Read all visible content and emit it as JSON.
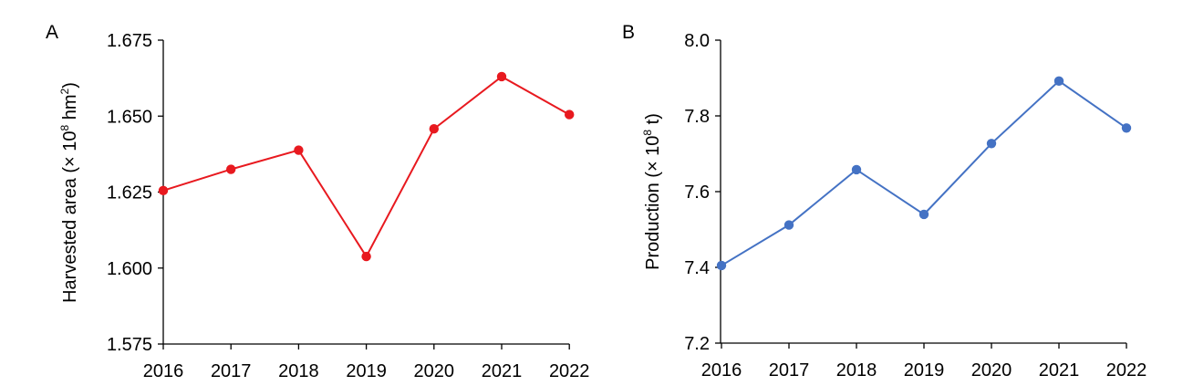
{
  "panels": [
    {
      "letter": "A"
    },
    {
      "letter": "B"
    }
  ],
  "chart_data": [
    {
      "type": "line",
      "panel": "A",
      "ylabel_main": "Harvested area (× 10",
      "ylabel_sup": "8",
      "ylabel_mid": " hm",
      "ylabel_sup2": "2",
      "ylabel_end": ")",
      "xlabel": "",
      "x": [
        "2016",
        "2017",
        "2018",
        "2019",
        "2020",
        "2021",
        "2022"
      ],
      "y_ticks": [
        "1.575",
        "1.600",
        "1.625",
        "1.650",
        "1.675"
      ],
      "ylim": [
        1.575,
        1.675
      ],
      "series": [
        {
          "values": [
            1.6255,
            1.6325,
            1.6388,
            1.6038,
            1.6458,
            1.663,
            1.6505
          ],
          "color": "#e8191f"
        }
      ],
      "grid": false
    },
    {
      "type": "line",
      "panel": "B",
      "ylabel_main": "Production (× 10",
      "ylabel_sup": "8",
      "ylabel_end": " t)",
      "xlabel": "",
      "x": [
        "2016",
        "2017",
        "2018",
        "2019",
        "2020",
        "2021",
        "2022"
      ],
      "y_ticks": [
        "7.2",
        "7.4",
        "7.6",
        "7.8",
        "8.0"
      ],
      "ylim": [
        7.2,
        8.0
      ],
      "series": [
        {
          "values": [
            7.405,
            7.512,
            7.658,
            7.54,
            7.727,
            7.892,
            7.768
          ],
          "color": "#4472c4"
        }
      ],
      "grid": false
    }
  ]
}
